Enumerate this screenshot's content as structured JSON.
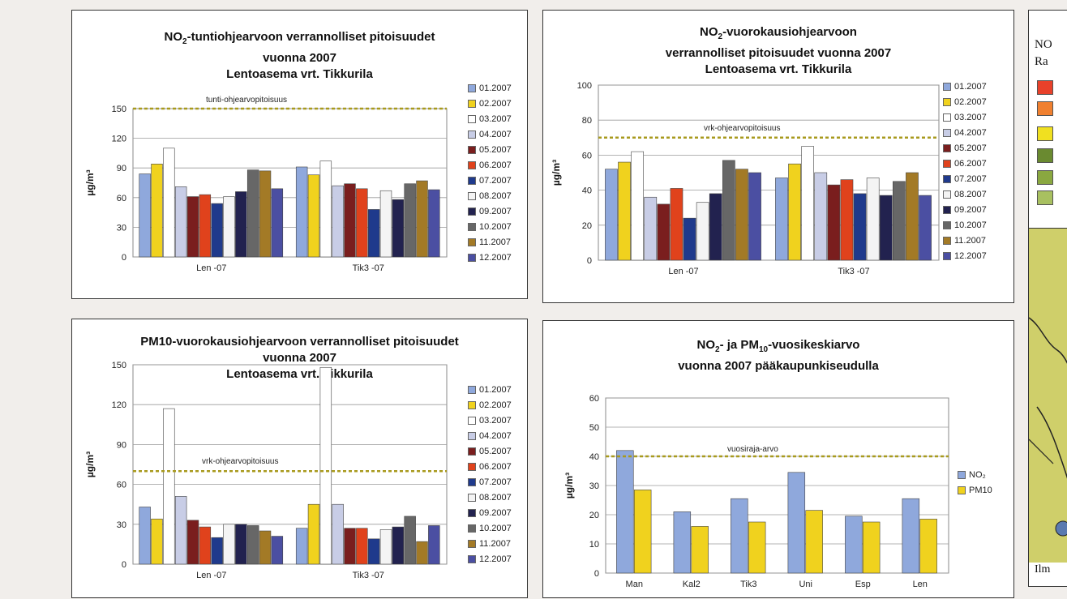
{
  "months": [
    "01.2007",
    "02.2007",
    "03.2007",
    "04.2007",
    "05.2007",
    "06.2007",
    "07.2007",
    "08.2007",
    "09.2007",
    "10.2007",
    "11.2007",
    "12.2007"
  ],
  "month_colors": [
    "#8fa8dc",
    "#f0d21e",
    "#ffffff",
    "#c8cde6",
    "#7a1e1e",
    "#e0421c",
    "#1f3a8c",
    "#f4f4f4",
    "#22224f",
    "#676767",
    "#a37a26",
    "#4b4fa2"
  ],
  "panels": {
    "p1": {
      "title_prefix": "NO",
      "title_sub": "2",
      "title_line1_suffix": "-tuntiohjearvoon verrannolliset pitoisuudet",
      "title_line2": "vuonna 2007",
      "title_line3": "Lentoasema vrt. Tikkurila",
      "ylabel": "µg/m³",
      "ref_label": "tunti-ohjearvopitoisuus"
    },
    "p2": {
      "title_prefix": "NO",
      "title_sub": "2",
      "title_line1_suffix": "-vuorokausiohjearvoon",
      "title_line2": "verrannolliset pitoisuudet vuonna 2007",
      "title_line3": "Lentoasema vrt. Tikkurila",
      "ylabel": "µg/m³",
      "ref_label": "vrk-ohjearvopitoisuus"
    },
    "p3": {
      "title_line1": "PM10-vuorokausiohjearvoon verrannolliset pitoisuudet",
      "title_line2": "vuonna 2007",
      "title_line3": "Lentoasema vrt. Tikkurila",
      "ylabel": "µg/m³",
      "ref_label": "vrk-ohjearvopitoisuus"
    },
    "p4": {
      "title_a": "NO",
      "title_a_sub": "2",
      "title_b": "- ja PM",
      "title_b_sub": "10",
      "title_c": "-vuosikeskiarvo",
      "title_line2": "vuonna 2007 pääkaupunkiseudulla",
      "ylabel": "µg/m³",
      "ref_label": "vuosiraja-arvo",
      "legend": [
        "NO₂",
        "PM10"
      ],
      "legend_colors": [
        "#8fa8dc",
        "#f0d21e"
      ]
    }
  },
  "side": {
    "line1": "NO",
    "line2": "Ra",
    "footer": "Ilm",
    "swatches": [
      "#e8412a",
      "#f08030",
      "#f0e020",
      "#6a8a30",
      "#8aa840",
      "#a8c060"
    ]
  },
  "chart_data": [
    {
      "type": "bar",
      "title": "NO2-tuntiohjearvoon verrannolliset pitoisuudet vuonna 2007 Lentoasema vrt. Tikkurila",
      "ylabel": "µg/m³",
      "ylim": [
        0,
        150
      ],
      "yticks": [
        0,
        30,
        60,
        90,
        120,
        150
      ],
      "categories": [
        "Len -07",
        "Tik3 -07"
      ],
      "reference_line": {
        "value": 150,
        "label": "tunti-ohjearvopitoisuus"
      },
      "series": [
        {
          "name": "01.2007",
          "values": [
            84,
            91
          ]
        },
        {
          "name": "02.2007",
          "values": [
            94,
            83
          ]
        },
        {
          "name": "03.2007",
          "values": [
            110,
            97
          ]
        },
        {
          "name": "04.2007",
          "values": [
            71,
            72
          ]
        },
        {
          "name": "05.2007",
          "values": [
            61,
            74
          ]
        },
        {
          "name": "06.2007",
          "values": [
            63,
            69
          ]
        },
        {
          "name": "07.2007",
          "values": [
            54,
            48
          ]
        },
        {
          "name": "08.2007",
          "values": [
            61,
            67
          ]
        },
        {
          "name": "09.2007",
          "values": [
            66,
            58
          ]
        },
        {
          "name": "10.2007",
          "values": [
            88,
            74
          ]
        },
        {
          "name": "11.2007",
          "values": [
            87,
            77
          ]
        },
        {
          "name": "12.2007",
          "values": [
            69,
            68
          ]
        }
      ],
      "grid": true,
      "legend": "right"
    },
    {
      "type": "bar",
      "title": "NO2-vuorokausiohjearvoon verrannolliset pitoisuudet vuonna 2007 Lentoasema vrt. Tikkurila",
      "ylabel": "µg/m³",
      "ylim": [
        0,
        100
      ],
      "yticks": [
        0,
        20,
        40,
        60,
        80,
        100
      ],
      "categories": [
        "Len -07",
        "Tik3 -07"
      ],
      "reference_line": {
        "value": 70,
        "label": "vrk-ohjearvopitoisuus"
      },
      "series": [
        {
          "name": "01.2007",
          "values": [
            52,
            47
          ]
        },
        {
          "name": "02.2007",
          "values": [
            56,
            55
          ]
        },
        {
          "name": "03.2007",
          "values": [
            62,
            65
          ]
        },
        {
          "name": "04.2007",
          "values": [
            36,
            50
          ]
        },
        {
          "name": "05.2007",
          "values": [
            32,
            43
          ]
        },
        {
          "name": "06.2007",
          "values": [
            41,
            46
          ]
        },
        {
          "name": "07.2007",
          "values": [
            24,
            38
          ]
        },
        {
          "name": "08.2007",
          "values": [
            33,
            47
          ]
        },
        {
          "name": "09.2007",
          "values": [
            38,
            37
          ]
        },
        {
          "name": "10.2007",
          "values": [
            57,
            45
          ]
        },
        {
          "name": "11.2007",
          "values": [
            52,
            50
          ]
        },
        {
          "name": "12.2007",
          "values": [
            50,
            37
          ]
        }
      ],
      "grid": true,
      "legend": "right"
    },
    {
      "type": "bar",
      "title": "PM10-vuorokausiohjearvoon verrannolliset pitoisuudet vuonna 2007 Lentoasema vrt. Tikkurila",
      "ylabel": "µg/m³",
      "ylim": [
        0,
        150
      ],
      "yticks": [
        0,
        30,
        60,
        90,
        120,
        150
      ],
      "categories": [
        "Len -07",
        "Tik3 -07"
      ],
      "reference_line": {
        "value": 70,
        "label": "vrk-ohjearvopitoisuus"
      },
      "series": [
        {
          "name": "01.2007",
          "values": [
            43,
            27
          ]
        },
        {
          "name": "02.2007",
          "values": [
            34,
            45
          ]
        },
        {
          "name": "03.2007",
          "values": [
            117,
            148
          ]
        },
        {
          "name": "04.2007",
          "values": [
            51,
            45
          ]
        },
        {
          "name": "05.2007",
          "values": [
            33,
            27
          ]
        },
        {
          "name": "06.2007",
          "values": [
            28,
            27
          ]
        },
        {
          "name": "07.2007",
          "values": [
            20,
            19
          ]
        },
        {
          "name": "08.2007",
          "values": [
            30,
            26
          ]
        },
        {
          "name": "09.2007",
          "values": [
            30,
            28
          ]
        },
        {
          "name": "10.2007",
          "values": [
            29,
            36
          ]
        },
        {
          "name": "11.2007",
          "values": [
            25,
            17
          ]
        },
        {
          "name": "12.2007",
          "values": [
            21,
            29
          ]
        }
      ],
      "grid": true,
      "legend": "right"
    },
    {
      "type": "bar",
      "title": "NO2- ja PM10-vuosikeskiarvo vuonna 2007 pääkaupunkiseudulla",
      "ylabel": "µg/m³",
      "ylim": [
        0,
        60
      ],
      "yticks": [
        0,
        10,
        20,
        30,
        40,
        50,
        60
      ],
      "categories": [
        "Man",
        "Kal2",
        "Tik3",
        "Uni",
        "Esp",
        "Len"
      ],
      "reference_line": {
        "value": 40,
        "label": "vuosiraja-arvo"
      },
      "series": [
        {
          "name": "NO2",
          "values": [
            42,
            21,
            25.5,
            34.5,
            19.5,
            25.5
          ]
        },
        {
          "name": "PM10",
          "values": [
            28.5,
            16,
            17.5,
            21.5,
            17.5,
            18.5
          ]
        }
      ],
      "grid": true,
      "legend": "right"
    }
  ]
}
